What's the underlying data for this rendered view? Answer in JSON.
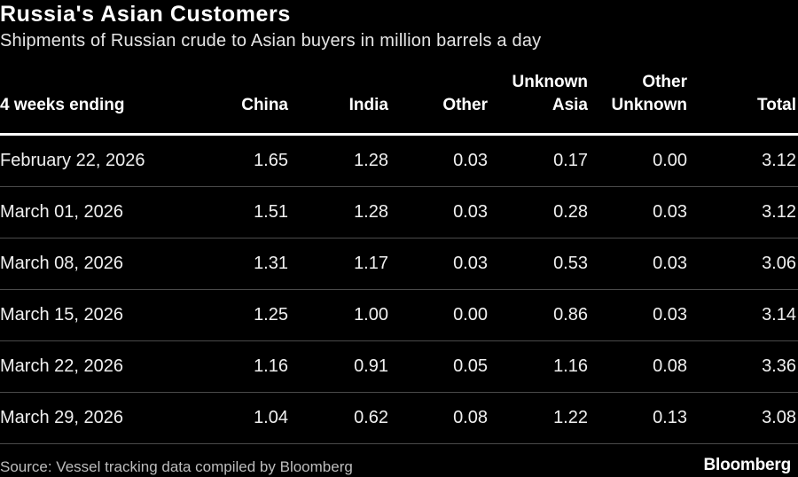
{
  "chart_data": {
    "type": "table",
    "title": "Russia's Asian Customers",
    "subtitle": "Shipments of Russian crude to Asian buyers in million barrels a day",
    "columns": [
      "4 weeks ending",
      "China",
      "India",
      "Other",
      "Unknown\nAsia",
      "Other\nUnknown",
      "Total"
    ],
    "rows": [
      {
        "date": "February 22, 2026",
        "values": [
          "1.65",
          "1.28",
          "0.03",
          "0.17",
          "0.00",
          "3.12"
        ]
      },
      {
        "date": "March 01, 2026",
        "values": [
          "1.51",
          "1.28",
          "0.03",
          "0.28",
          "0.03",
          "3.12"
        ]
      },
      {
        "date": "March 08, 2026",
        "values": [
          "1.31",
          "1.17",
          "0.03",
          "0.53",
          "0.03",
          "3.06"
        ]
      },
      {
        "date": "March 15, 2026",
        "values": [
          "1.25",
          "1.00",
          "0.00",
          "0.86",
          "0.03",
          "3.14"
        ]
      },
      {
        "date": "March 22, 2026",
        "values": [
          "1.16",
          "0.91",
          "0.05",
          "1.16",
          "0.08",
          "3.36"
        ]
      },
      {
        "date": "March 29, 2026",
        "values": [
          "1.04",
          "0.62",
          "0.08",
          "1.22",
          "0.13",
          "3.08"
        ]
      }
    ]
  },
  "footer": {
    "source": "Source: Vessel tracking data compiled by Bloomberg",
    "brand": "Bloomberg"
  },
  "colors": {
    "background": "#000000",
    "text": "#ffffff",
    "divider": "#4a4a4a",
    "muted": "#bdbdbd"
  }
}
